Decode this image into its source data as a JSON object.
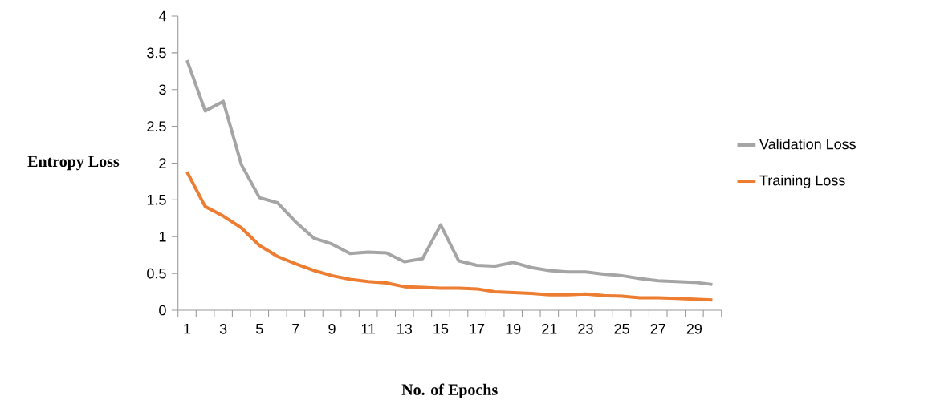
{
  "chart_data": {
    "type": "line",
    "xlabel": "No. of Epochs",
    "ylabel": "Entropy Loss",
    "categories": [
      "1",
      null,
      "3",
      null,
      "5",
      null,
      "7",
      null,
      "9",
      null,
      "11",
      null,
      "13",
      null,
      "15",
      null,
      "17",
      null,
      "19",
      null,
      "21",
      null,
      "23",
      null,
      "25",
      null,
      "27",
      null,
      "29",
      null
    ],
    "ylim": [
      0,
      4
    ],
    "yticks": [
      0,
      0.5,
      1,
      1.5,
      2,
      2.5,
      3,
      3.5,
      4
    ],
    "legend": "right",
    "grid": false,
    "marker": "none",
    "line_style": "solid",
    "series": [
      {
        "name": "Validation Loss",
        "color": "#a5a5a5",
        "values": [
          3.4,
          2.71,
          2.84,
          1.98,
          1.53,
          1.46,
          1.2,
          0.98,
          0.9,
          0.77,
          0.79,
          0.78,
          0.66,
          0.7,
          1.16,
          0.67,
          0.61,
          0.6,
          0.65,
          0.58,
          0.54,
          0.52,
          0.52,
          0.49,
          0.47,
          0.43,
          0.4,
          0.39,
          0.38,
          0.35
        ]
      },
      {
        "name": "Training Loss",
        "color": "#ed7d31",
        "values": [
          1.88,
          1.41,
          1.28,
          1.12,
          0.88,
          0.73,
          0.63,
          0.54,
          0.47,
          0.42,
          0.39,
          0.37,
          0.32,
          0.31,
          0.3,
          0.3,
          0.29,
          0.25,
          0.24,
          0.23,
          0.21,
          0.21,
          0.22,
          0.2,
          0.19,
          0.17,
          0.17,
          0.16,
          0.15,
          0.14
        ]
      }
    ]
  }
}
